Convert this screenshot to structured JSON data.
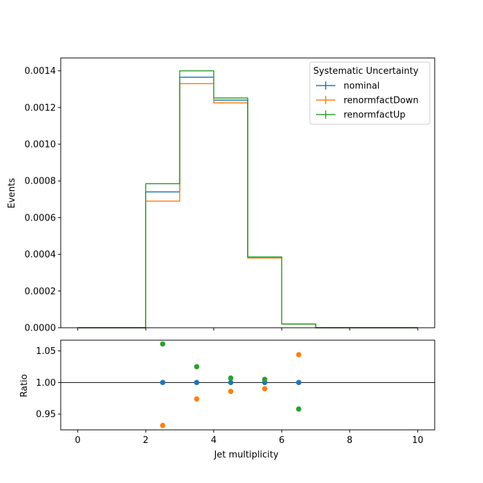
{
  "chart_data": {
    "type": "histogram-with-ratio",
    "top_panel": {
      "ylabel": "Events",
      "ylim": [
        0,
        0.00147
      ],
      "yticks": [
        "0.0000",
        "0.0002",
        "0.0004",
        "0.0006",
        "0.0008",
        "0.0010",
        "0.0012",
        "0.0014"
      ],
      "xlim": [
        -0.5,
        10.5
      ],
      "bin_edges": [
        0,
        1,
        2,
        3,
        4,
        5,
        6,
        7,
        8,
        9,
        10
      ],
      "series": [
        {
          "name": "nominal",
          "color": "#1f77b4",
          "values": [
            0,
            0,
            0.00074,
            0.001365,
            0.00124,
            0.000384,
            2e-05,
            0,
            0,
            0
          ]
        },
        {
          "name": "renormfactDown",
          "color": "#ff7f0e",
          "values": [
            0,
            0,
            0.00069,
            0.00133,
            0.001225,
            0.00038,
            2e-05,
            0,
            0,
            0
          ]
        },
        {
          "name": "renormfactUp",
          "color": "#2ca02c",
          "values": [
            0,
            0,
            0.000785,
            0.0014,
            0.001252,
            0.000386,
            2e-05,
            0,
            0,
            0
          ]
        }
      ],
      "legend": {
        "title": "Systematic Uncertainty",
        "placement": "top-right"
      }
    },
    "ratio_panel": {
      "ylabel": "Ratio",
      "xlabel": "Jet multiplicity",
      "ylim": [
        0.925,
        1.067
      ],
      "yticks": [
        "0.95",
        "1.00",
        "1.05"
      ],
      "xticks": [
        "0",
        "2",
        "4",
        "6",
        "8",
        "10"
      ],
      "reference_line": 1.0,
      "points": [
        {
          "name": "nominal",
          "color": "#1f77b4",
          "x": [
            2.5,
            3.5,
            4.5,
            5.5,
            6.5
          ],
          "y": [
            1.0,
            1.0,
            1.0,
            1.0,
            1.0
          ]
        },
        {
          "name": "renormfactDown",
          "color": "#ff7f0e",
          "x": [
            2.5,
            3.5,
            4.5,
            5.5,
            6.5
          ],
          "y": [
            0.932,
            0.974,
            0.986,
            0.99,
            1.044
          ]
        },
        {
          "name": "renormfactUp",
          "color": "#2ca02c",
          "x": [
            2.5,
            3.5,
            4.5,
            5.5,
            6.5
          ],
          "y": [
            1.061,
            1.025,
            1.007,
            1.005,
            0.958
          ]
        }
      ]
    }
  }
}
